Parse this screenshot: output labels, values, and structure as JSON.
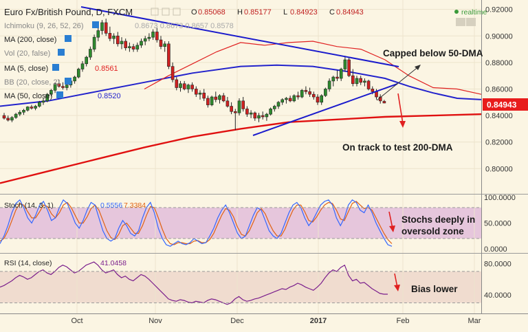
{
  "header": {
    "symbol": "Euro Fx/British Pound, D, FXCM",
    "ohlc": [
      {
        "k": "O",
        "v": "0.85068"
      },
      {
        "k": "H",
        "v": "0.85177"
      },
      {
        "k": "L",
        "v": "0.84923"
      },
      {
        "k": "C",
        "v": "0.84943"
      }
    ],
    "status": "realtime"
  },
  "indicator_labels": [
    {
      "text": "Ichimoku (9, 26, 52, 26)",
      "value": "0.8673  0.8673  0.8657  0.8578"
    },
    {
      "text": "MA (200, close)",
      "value": ""
    },
    {
      "text": "Vol (20, false)",
      "value": ""
    },
    {
      "text": "MA (5, close)",
      "value": "0.8561"
    },
    {
      "text": "BB (20, close, 2)",
      "value": ""
    },
    {
      "text": "MA (50, close)",
      "value": "0.8520"
    }
  ],
  "price_badge": "0.84943",
  "annotations": {
    "capped": "Capped below 50-DMA",
    "track": "On track to test 200-DMA",
    "stochs_1": "Stochs deeply in",
    "stochs_2": "oversold zone",
    "bias": "Bias lower"
  },
  "colors": {
    "background": "#fbf5e3",
    "up_candle": "#2e8b2e",
    "down_candle": "#d02020",
    "ma200": "#e01010",
    "ma50": "#2222cc",
    "ma5": "#e02020",
    "trendline": "#1a1acc",
    "stoch_k": "#3366ff",
    "stoch_d": "#e06010",
    "stoch_band": "#e6c6dc",
    "rsi_line": "#7a1e8c",
    "rsi_band": "#f0dccf",
    "badge": "#e81c1c",
    "arrow_red": "#e02020"
  },
  "chart_data": [
    {
      "type": "candlestick",
      "yaxis": {
        "ticks": [
          "0.92000",
          "0.90000",
          "0.88000",
          "0.86000",
          "0.84000",
          "0.82000",
          "0.80000"
        ],
        "range": [
          0.782,
          0.925
        ]
      },
      "xaxis": {
        "ticks": [
          "Oct",
          "Nov",
          "Dec",
          "2017",
          "Feb",
          "Mar"
        ]
      },
      "candles": [
        [
          0.84,
          0.842,
          0.837,
          0.838
        ],
        [
          0.838,
          0.84,
          0.8355,
          0.8365
        ],
        [
          0.8365,
          0.8395,
          0.835,
          0.8385
        ],
        [
          0.8385,
          0.842,
          0.8375,
          0.841
        ],
        [
          0.841,
          0.844,
          0.8395,
          0.8425
        ],
        [
          0.8425,
          0.845,
          0.8405,
          0.844
        ],
        [
          0.844,
          0.847,
          0.843,
          0.8465
        ],
        [
          0.8465,
          0.848,
          0.8445,
          0.8455
        ],
        [
          0.8455,
          0.848,
          0.844,
          0.847
        ],
        [
          0.847,
          0.851,
          0.846,
          0.85
        ],
        [
          0.85,
          0.853,
          0.848,
          0.851
        ],
        [
          0.851,
          0.857,
          0.85,
          0.856
        ],
        [
          0.856,
          0.86,
          0.8545,
          0.859
        ],
        [
          0.859,
          0.865,
          0.857,
          0.864
        ],
        [
          0.864,
          0.867,
          0.861,
          0.862
        ],
        [
          0.862,
          0.865,
          0.8595,
          0.861
        ],
        [
          0.861,
          0.864,
          0.859,
          0.863
        ],
        [
          0.863,
          0.868,
          0.861,
          0.866
        ],
        [
          0.866,
          0.87,
          0.864,
          0.869
        ],
        [
          0.869,
          0.876,
          0.868,
          0.875
        ],
        [
          0.875,
          0.881,
          0.873,
          0.879
        ],
        [
          0.879,
          0.885,
          0.877,
          0.884
        ],
        [
          0.884,
          0.892,
          0.882,
          0.89
        ],
        [
          0.89,
          0.901,
          0.888,
          0.899
        ],
        [
          0.899,
          0.906,
          0.896,
          0.904
        ],
        [
          0.904,
          0.912,
          0.901,
          0.91
        ],
        [
          0.91,
          0.913,
          0.9,
          0.902
        ],
        [
          0.902,
          0.907,
          0.896,
          0.898
        ],
        [
          0.898,
          0.902,
          0.894,
          0.9
        ],
        [
          0.9,
          0.903,
          0.892,
          0.894
        ],
        [
          0.894,
          0.899,
          0.89,
          0.896
        ],
        [
          0.896,
          0.898,
          0.889,
          0.891
        ],
        [
          0.891,
          0.895,
          0.888,
          0.892
        ],
        [
          0.892,
          0.894,
          0.888,
          0.89
        ],
        [
          0.89,
          0.895,
          0.888,
          0.893
        ],
        [
          0.893,
          0.898,
          0.891,
          0.896
        ],
        [
          0.896,
          0.9,
          0.893,
          0.898
        ],
        [
          0.898,
          0.902,
          0.896,
          0.899
        ],
        [
          0.899,
          0.905,
          0.897,
          0.903
        ],
        [
          0.903,
          0.906,
          0.895,
          0.897
        ],
        [
          0.897,
          0.9,
          0.89,
          0.892
        ],
        [
          0.892,
          0.896,
          0.888,
          0.894
        ],
        [
          0.894,
          0.896,
          0.875,
          0.877
        ],
        [
          0.877,
          0.88,
          0.865,
          0.867
        ],
        [
          0.867,
          0.869,
          0.859,
          0.861
        ],
        [
          0.861,
          0.866,
          0.858,
          0.864
        ],
        [
          0.864,
          0.866,
          0.859,
          0.86
        ],
        [
          0.86,
          0.864,
          0.857,
          0.863
        ],
        [
          0.863,
          0.865,
          0.858,
          0.86
        ],
        [
          0.86,
          0.862,
          0.854,
          0.856
        ],
        [
          0.856,
          0.859,
          0.852,
          0.857
        ],
        [
          0.857,
          0.86,
          0.851,
          0.853
        ],
        [
          0.853,
          0.855,
          0.846,
          0.848
        ],
        [
          0.848,
          0.855,
          0.847,
          0.854
        ],
        [
          0.854,
          0.858,
          0.85,
          0.852
        ],
        [
          0.852,
          0.856,
          0.849,
          0.855
        ],
        [
          0.855,
          0.857,
          0.85,
          0.851
        ],
        [
          0.851,
          0.854,
          0.846,
          0.847
        ],
        [
          0.847,
          0.85,
          0.841,
          0.843
        ],
        [
          0.843,
          0.845,
          0.829,
          0.842
        ],
        [
          0.842,
          0.853,
          0.84,
          0.851
        ],
        [
          0.851,
          0.854,
          0.843,
          0.845
        ],
        [
          0.845,
          0.847,
          0.839,
          0.841
        ],
        [
          0.841,
          0.844,
          0.838,
          0.842
        ],
        [
          0.842,
          0.843,
          0.836,
          0.838
        ],
        [
          0.838,
          0.842,
          0.835,
          0.84
        ],
        [
          0.84,
          0.843,
          0.837,
          0.839
        ],
        [
          0.839,
          0.842,
          0.836,
          0.841
        ],
        [
          0.841,
          0.846,
          0.84,
          0.845
        ],
        [
          0.845,
          0.848,
          0.843,
          0.847
        ],
        [
          0.847,
          0.851,
          0.845,
          0.85
        ],
        [
          0.85,
          0.853,
          0.848,
          0.852
        ],
        [
          0.852,
          0.854,
          0.849,
          0.853
        ],
        [
          0.853,
          0.855,
          0.85,
          0.851
        ],
        [
          0.851,
          0.856,
          0.85,
          0.855
        ],
        [
          0.855,
          0.858,
          0.852,
          0.854
        ],
        [
          0.854,
          0.86,
          0.853,
          0.859
        ],
        [
          0.859,
          0.862,
          0.856,
          0.858
        ],
        [
          0.858,
          0.861,
          0.854,
          0.856
        ],
        [
          0.856,
          0.858,
          0.852,
          0.854
        ],
        [
          0.854,
          0.856,
          0.848,
          0.85
        ],
        [
          0.85,
          0.856,
          0.848,
          0.855
        ],
        [
          0.855,
          0.861,
          0.854,
          0.86
        ],
        [
          0.86,
          0.868,
          0.858,
          0.866
        ],
        [
          0.866,
          0.87,
          0.862,
          0.869
        ],
        [
          0.869,
          0.874,
          0.866,
          0.868
        ],
        [
          0.868,
          0.876,
          0.866,
          0.875
        ],
        [
          0.875,
          0.885,
          0.873,
          0.882
        ],
        [
          0.882,
          0.884,
          0.869,
          0.87
        ],
        [
          0.87,
          0.875,
          0.862,
          0.864
        ],
        [
          0.864,
          0.87,
          0.862,
          0.868
        ],
        [
          0.868,
          0.87,
          0.863,
          0.865
        ],
        [
          0.865,
          0.868,
          0.862,
          0.866
        ],
        [
          0.866,
          0.867,
          0.859,
          0.86
        ],
        [
          0.86,
          0.862,
          0.856,
          0.858
        ],
        [
          0.858,
          0.86,
          0.852,
          0.854
        ],
        [
          0.854,
          0.856,
          0.849,
          0.851
        ],
        [
          0.8507,
          0.8518,
          0.8492,
          0.8494
        ]
      ],
      "series": [
        {
          "name": "MA (200, close)",
          "values": [
            [
              0,
              0.789
            ],
            [
              20,
              0.798
            ],
            [
              40,
              0.807
            ],
            [
              60,
              0.816
            ],
            [
              80,
              0.824
            ],
            [
              100,
              0.83
            ],
            [
              120,
              0.835
            ],
            [
              140,
              0.837
            ],
            [
              160,
              0.839
            ],
            [
              180,
              0.84
            ],
            [
              200,
              0.841
            ]
          ]
        },
        {
          "name": "MA (50, close)",
          "values": [
            [
              0,
              0.847
            ],
            [
              20,
              0.851
            ],
            [
              40,
              0.858
            ],
            [
              60,
              0.865
            ],
            [
              80,
              0.872
            ],
            [
              100,
              0.877
            ],
            [
              115,
              0.878
            ],
            [
              130,
              0.877
            ],
            [
              145,
              0.873
            ],
            [
              160,
              0.868
            ],
            [
              170,
              0.862
            ],
            [
              180,
              0.857
            ],
            [
              190,
              0.853
            ],
            [
              200,
              0.852
            ]
          ]
        },
        {
          "name": "MA (5, close)",
          "values": [
            [
              60,
              0.86
            ],
            [
              70,
              0.87
            ],
            [
              80,
              0.879
            ],
            [
              90,
              0.888
            ],
            [
              100,
              0.895
            ],
            [
              110,
              0.893
            ],
            [
              120,
              0.895
            ],
            [
              130,
              0.896
            ],
            [
              140,
              0.892
            ],
            [
              150,
              0.89
            ],
            [
              160,
              0.882
            ],
            [
              170,
              0.87
            ],
            [
              180,
              0.861
            ],
            [
              190,
              0.86
            ],
            [
              200,
              0.856
            ]
          ]
        }
      ]
    },
    {
      "type": "line",
      "title": "Stoch (14, 3, 1)",
      "values_shown": [
        "0.5556",
        "7.3384"
      ],
      "yaxis": {
        "ticks": [
          "100.0000",
          "50.0000",
          "0.0000"
        ],
        "range": [
          0,
          100
        ],
        "bands": [
          20,
          80
        ]
      },
      "series": [
        {
          "name": "%K",
          "values": [
            10,
            25,
            45,
            70,
            88,
            95,
            80,
            60,
            50,
            65,
            85,
            92,
            75,
            55,
            60,
            80,
            95,
            88,
            70,
            50,
            40,
            55,
            75,
            90,
            85,
            60,
            35,
            20,
            15,
            20,
            40,
            55,
            45,
            30,
            25,
            35,
            60,
            80,
            90,
            70,
            40,
            20,
            8,
            5,
            10,
            15,
            10,
            8,
            12,
            20,
            15,
            10,
            12,
            25,
            40,
            60,
            75,
            85,
            70,
            50,
            30,
            20,
            25,
            45,
            65,
            80,
            75,
            55,
            35,
            25,
            20,
            30,
            50,
            70,
            85,
            90,
            80,
            60,
            45,
            55,
            70,
            85,
            92,
            95,
            85,
            60,
            45,
            60,
            85,
            95,
            90,
            75,
            70,
            85,
            70,
            50,
            35,
            20,
            8,
            5
          ]
        },
        {
          "name": "%D",
          "values": [
            15,
            20,
            35,
            55,
            75,
            88,
            85,
            72,
            60,
            60,
            72,
            85,
            82,
            68,
            60,
            70,
            85,
            90,
            80,
            65,
            50,
            50,
            62,
            78,
            85,
            75,
            55,
            35,
            22,
            18,
            28,
            45,
            50,
            40,
            30,
            30,
            45,
            65,
            82,
            80,
            60,
            38,
            20,
            10,
            8,
            12,
            12,
            10,
            10,
            15,
            16,
            12,
            12,
            18,
            30,
            48,
            65,
            78,
            75,
            62,
            42,
            28,
            25,
            35,
            52,
            70,
            78,
            68,
            50,
            35,
            25,
            25,
            38,
            58,
            75,
            85,
            85,
            72,
            55,
            52,
            62,
            75,
            85,
            90,
            88,
            75,
            58,
            55,
            72,
            88,
            92,
            85,
            78,
            80,
            75,
            60,
            45,
            30,
            18,
            10
          ]
        }
      ]
    },
    {
      "type": "line",
      "title": "RSI (14, close)",
      "values_shown": [
        "41.0458"
      ],
      "yaxis": {
        "ticks": [
          "80.0000",
          "40.0000"
        ],
        "range": [
          20,
          90
        ],
        "bands": [
          30,
          70
        ]
      },
      "series": [
        {
          "name": "RSI",
          "values": [
            50,
            52,
            55,
            58,
            62,
            65,
            63,
            60,
            62,
            66,
            70,
            72,
            68,
            66,
            70,
            75,
            78,
            76,
            72,
            68,
            70,
            74,
            78,
            80,
            82,
            78,
            72,
            68,
            70,
            72,
            66,
            62,
            64,
            60,
            58,
            62,
            66,
            64,
            60,
            55,
            50,
            45,
            40,
            35,
            33,
            32,
            34,
            33,
            31,
            30,
            32,
            31,
            30,
            33,
            35,
            34,
            32,
            30,
            28,
            30,
            35,
            38,
            34,
            32,
            33,
            35,
            36,
            38,
            40,
            42,
            44,
            46,
            48,
            47,
            50,
            52,
            55,
            53,
            50,
            48,
            46,
            50,
            55,
            62,
            68,
            72,
            70,
            75,
            78,
            65,
            58,
            60,
            55,
            56,
            52,
            48,
            45,
            42,
            41,
            41
          ]
        }
      ]
    }
  ]
}
